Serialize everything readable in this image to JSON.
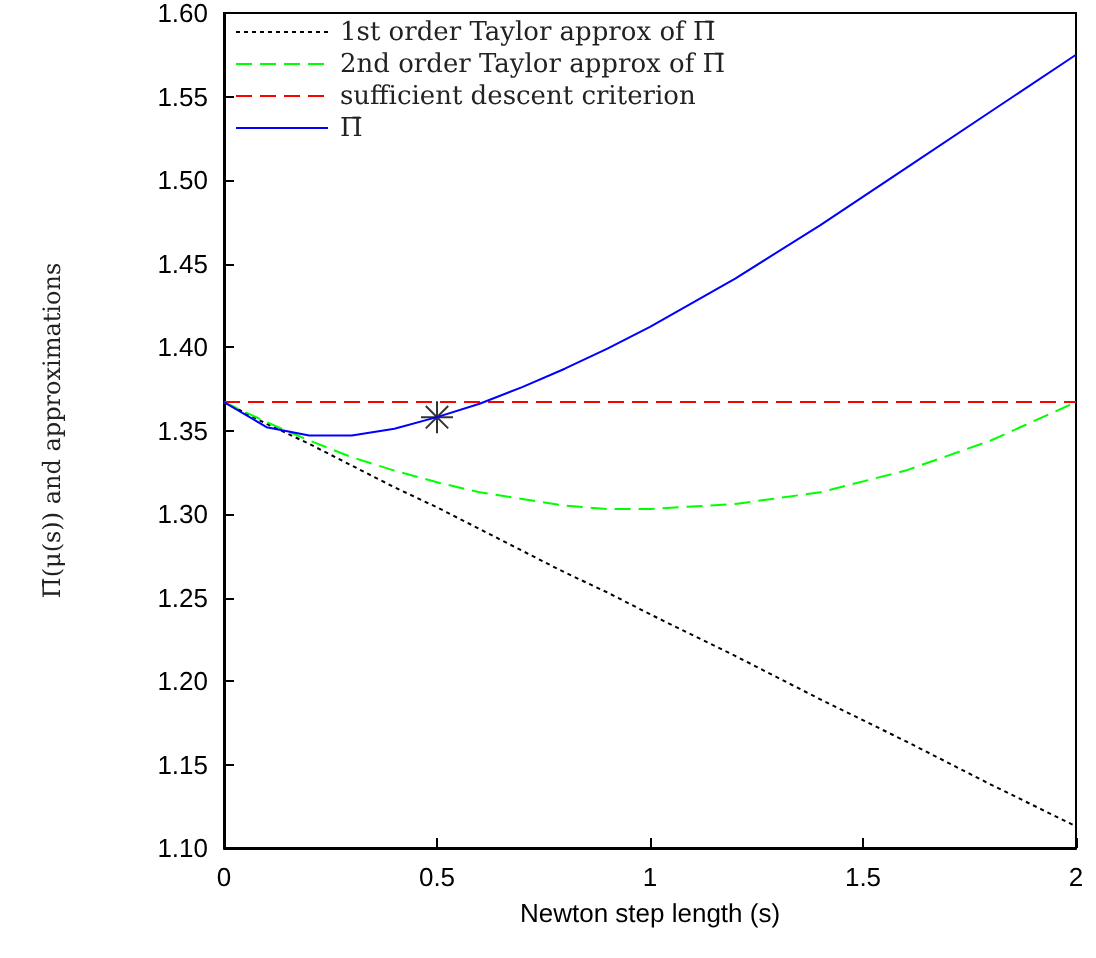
{
  "chart_data": {
    "type": "line",
    "xlabel": "Newton step length (s)",
    "ylabel": "Π̄(μ(s)) and approximations",
    "x": [
      0,
      0.1,
      0.2,
      0.3,
      0.4,
      0.5,
      0.6,
      0.7,
      0.8,
      0.9,
      1.0,
      1.2,
      1.4,
      1.6,
      1.8,
      2.0
    ],
    "series": [
      {
        "name": "1st order Taylor approx of Π̄",
        "color": "#000000",
        "line_style": "dotted",
        "values": [
          1.367,
          1.354,
          1.342,
          1.329,
          1.316,
          1.304,
          1.291,
          1.278,
          1.265,
          1.253,
          1.24,
          1.215,
          1.189,
          1.164,
          1.138,
          1.113
        ]
      },
      {
        "name": "2nd order Taylor approx of Π̄",
        "color": "#00ff00",
        "line_style": "dashed",
        "values": [
          1.367,
          1.355,
          1.344,
          1.334,
          1.326,
          1.319,
          1.313,
          1.309,
          1.305,
          1.303,
          1.303,
          1.306,
          1.313,
          1.326,
          1.344,
          1.367
        ]
      },
      {
        "name": "sufficient descent criterion",
        "color": "#ff0000",
        "line_style": "dashed",
        "values": [
          1.367,
          1.367,
          1.367,
          1.367,
          1.367,
          1.367,
          1.367,
          1.367,
          1.367,
          1.367,
          1.367,
          1.367,
          1.367,
          1.367,
          1.367,
          1.367
        ]
      },
      {
        "name": "Π̄",
        "color": "#0000ff",
        "line_style": "solid",
        "values": [
          1.367,
          1.352,
          1.347,
          1.347,
          1.351,
          1.358,
          1.366,
          1.376,
          1.387,
          1.399,
          1.412,
          1.441,
          1.473,
          1.507,
          1.541,
          1.575
        ]
      },
      {
        "type": "scatter",
        "marker": "cross",
        "color": "#000000",
        "x": [
          0.5
        ],
        "values": [
          1.358
        ]
      }
    ],
    "xlim": [
      0,
      2
    ],
    "xticks": [
      0,
      0.5,
      1,
      1.5,
      2
    ],
    "ylim": [
      1.1,
      1.6
    ],
    "yticks": [
      {
        "value": 1.1,
        "label": "1.10"
      },
      1.15,
      {
        "value": 1.2,
        "label": "1.20"
      },
      1.25,
      {
        "value": 1.3,
        "label": "1.30"
      },
      1.35,
      {
        "value": 1.4,
        "label": "1.40"
      },
      1.45,
      {
        "value": 1.5,
        "label": "1.50"
      },
      1.55,
      {
        "value": 1.6,
        "label": "1.60"
      }
    ],
    "grid": false,
    "legend": "top left",
    "marker": "none"
  }
}
